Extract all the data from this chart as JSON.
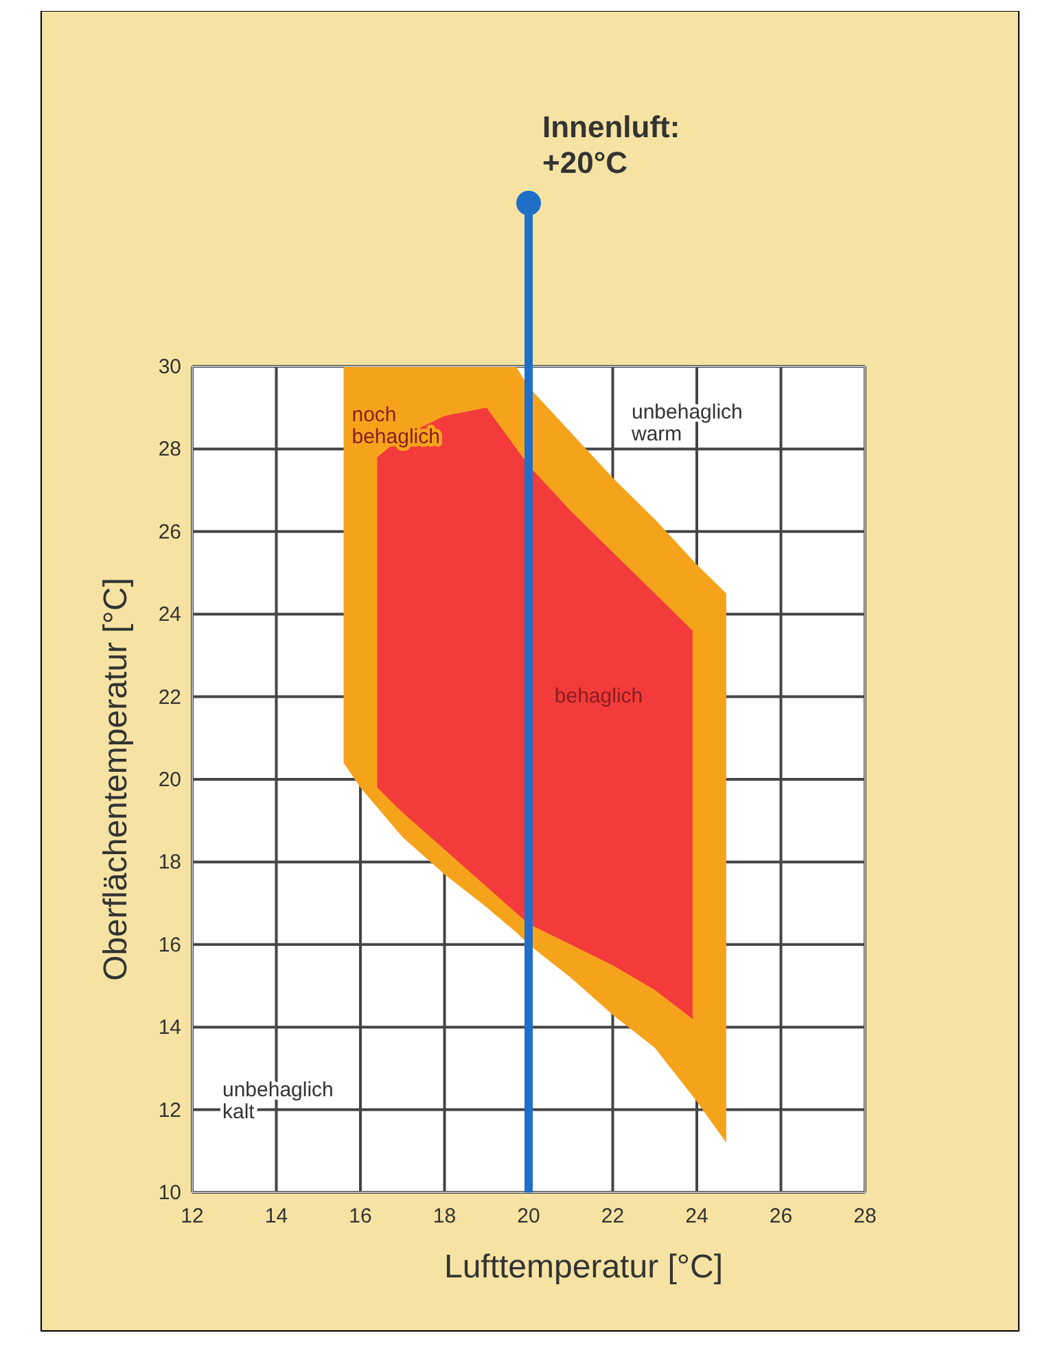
{
  "chart_data": {
    "type": "area",
    "xlabel": "Lufttemperatur [°C]",
    "ylabel": "Oberflächentemperatur [°C]",
    "xlim": [
      12,
      28
    ],
    "ylim": [
      10,
      30
    ],
    "xticks": [
      12,
      14,
      16,
      18,
      20,
      22,
      24,
      26,
      28
    ],
    "yticks": [
      10,
      12,
      14,
      16,
      18,
      20,
      22,
      24,
      26,
      28,
      30
    ],
    "grid": true,
    "legend": false,
    "series": [
      {
        "name": "noch behaglich",
        "color": "#f6a31c",
        "x": [
          15.6,
          19.7,
          20,
          21,
          22,
          23,
          24,
          24.7,
          24.7,
          24,
          23,
          22,
          21,
          20,
          19.7,
          19,
          18,
          17,
          16,
          15.6
        ],
        "values": [
          30,
          30,
          29.5,
          28.4,
          27.3,
          26.3,
          25.2,
          24.5,
          11.2,
          12.2,
          13.5,
          14.3,
          15.2,
          16,
          16.3,
          16.9,
          17.7,
          18.6,
          19.8,
          20.4
        ]
      },
      {
        "name": "behaglich",
        "color": "#f33b3b",
        "x": [
          16.4,
          17,
          18,
          19,
          20,
          21,
          22,
          23,
          23.9,
          23.9,
          23,
          22,
          21,
          20,
          19,
          18,
          17,
          16.4
        ],
        "values": [
          27.8,
          28.3,
          28.8,
          29,
          27.6,
          26.5,
          25.5,
          24.5,
          23.6,
          14.2,
          14.9,
          15.5,
          16,
          16.5,
          17.4,
          18.3,
          19.2,
          19.8
        ]
      }
    ],
    "ref_lines": [
      {
        "axis": "x",
        "value": 20,
        "label": "Innenluft:\n+20°C",
        "color": "#1f6fc8"
      }
    ],
    "annotations": [
      "unbehaglich\nwarm",
      "unbehaglich\nkalt"
    ]
  }
}
